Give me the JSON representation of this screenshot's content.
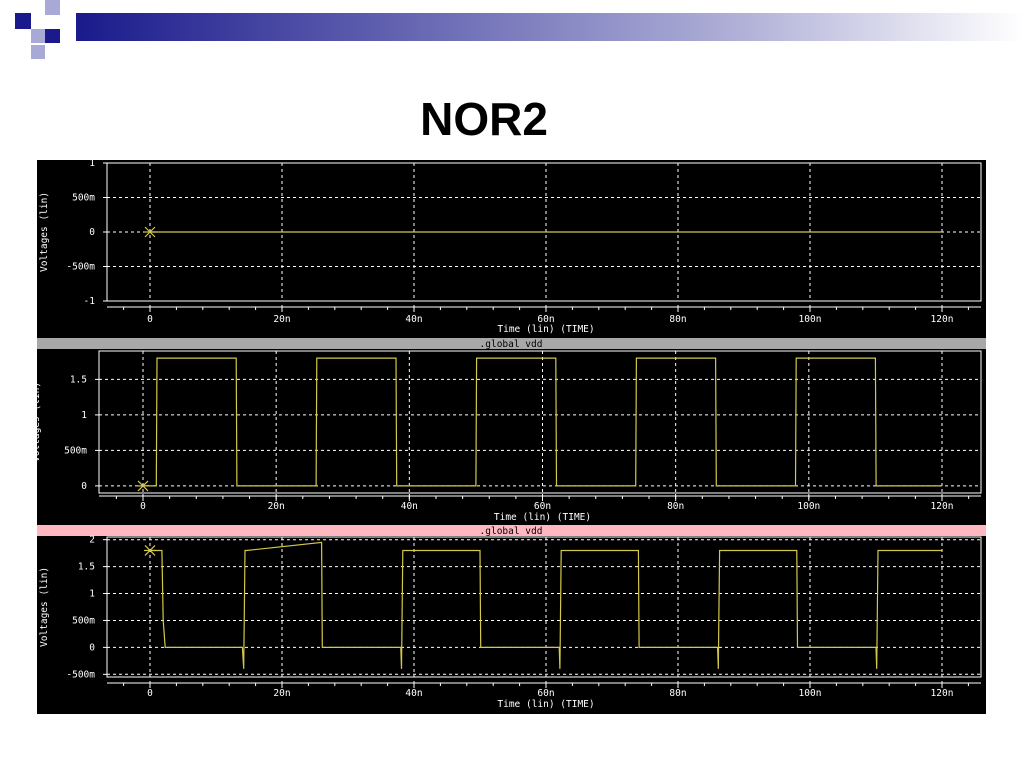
{
  "title": "NOR2",
  "colors": {
    "trace": "#d4c84a",
    "grid": "#ffffff",
    "background": "#000000",
    "bar_gray": "#a8a8a8",
    "bar_pink": "#ffb8c0",
    "deco_navy": "#1a1a8c",
    "deco_lavender": "#a9a9d8"
  },
  "chart_data": [
    {
      "type": "line",
      "xlabel": "Time (lin) (TIME)",
      "ylabel": "Voltages (lin)",
      "xlim": [
        -13,
        127
      ],
      "ylim": [
        -1,
        1
      ],
      "xticks": [
        0,
        20,
        40,
        60,
        80,
        100,
        120
      ],
      "xtick_labels": [
        "0",
        "20n",
        "40n",
        "60n",
        "80n",
        "100n",
        "120n"
      ],
      "yticks": [
        1,
        0.5,
        0,
        -0.5,
        -1
      ],
      "ytick_labels": [
        "1",
        "500m",
        "0",
        "-500m",
        "-1"
      ],
      "grid": true,
      "series": [
        {
          "x": [
            0,
            120
          ],
          "y": [
            0,
            0
          ]
        }
      ],
      "marker": {
        "x": 0,
        "y": 0
      }
    },
    {
      "type": "line",
      "banner": ".global vdd",
      "xlabel": "Time (lin) (TIME)",
      "ylabel": "Voltages (lin)",
      "xlim": [
        -7,
        127
      ],
      "ylim": [
        -0.1,
        1.9
      ],
      "xticks": [
        0,
        20,
        40,
        60,
        80,
        100,
        120
      ],
      "xtick_labels": [
        "0",
        "20n",
        "40n",
        "60n",
        "80n",
        "100n",
        "120n"
      ],
      "yticks": [
        1.5,
        1,
        0.5,
        0
      ],
      "ytick_labels": [
        "1.5",
        "1",
        "500m",
        "0"
      ],
      "grid": true,
      "series": [
        {
          "x": [
            0,
            2,
            2.1,
            14,
            14.1,
            26,
            26.1,
            38,
            38.1,
            50,
            50.1,
            62,
            62.1,
            74,
            74.1,
            86,
            86.1,
            98,
            98.1,
            110,
            110.1,
            120
          ],
          "y": [
            0,
            0,
            1.8,
            1.8,
            0,
            0,
            1.8,
            1.8,
            0,
            0,
            1.8,
            1.8,
            0,
            0,
            1.8,
            1.8,
            0,
            0,
            1.8,
            1.8,
            0,
            0
          ]
        }
      ],
      "marker": {
        "x": 0,
        "y": 0
      }
    },
    {
      "type": "line",
      "banner": ".global vdd",
      "xlabel": "Time (lin) (TIME)",
      "ylabel": "Voltages (lin)",
      "xlim": [
        -13,
        127
      ],
      "ylim": [
        -0.55,
        2.05
      ],
      "xticks": [
        0,
        20,
        40,
        60,
        80,
        100,
        120
      ],
      "xtick_labels": [
        "0",
        "20n",
        "40n",
        "60n",
        "80n",
        "100n",
        "120n"
      ],
      "yticks": [
        2,
        1.5,
        1,
        0.5,
        0,
        -0.5
      ],
      "ytick_labels": [
        "2",
        "1.5",
        "1",
        "500m",
        "0",
        "-500m"
      ],
      "grid": true,
      "series": [
        {
          "x": [
            0,
            1.8,
            2,
            2.3,
            14,
            14.2,
            14.4,
            14.6,
            26,
            26.1,
            26.3,
            38,
            38.1,
            38.3,
            38.5,
            50,
            50.1,
            50.3,
            62,
            62.1,
            62.3,
            62.5,
            74,
            74.1,
            74.3,
            86,
            86.1,
            86.3,
            86.5,
            98,
            98.1,
            98.3,
            110,
            110.1,
            110.3,
            110.5,
            120
          ],
          "y": [
            1.8,
            1.8,
            0.5,
            0,
            0,
            -0.4,
            1.8,
            1.8,
            1.95,
            0,
            0,
            0,
            -0.4,
            1.8,
            1.8,
            1.8,
            0,
            0,
            0,
            -0.4,
            1.8,
            1.8,
            1.8,
            0,
            0,
            0,
            -0.4,
            1.8,
            1.8,
            1.8,
            0,
            0,
            0,
            -0.4,
            1.8,
            1.8,
            1.8
          ]
        }
      ],
      "marker": {
        "x": 0,
        "y": 1.8
      }
    }
  ]
}
